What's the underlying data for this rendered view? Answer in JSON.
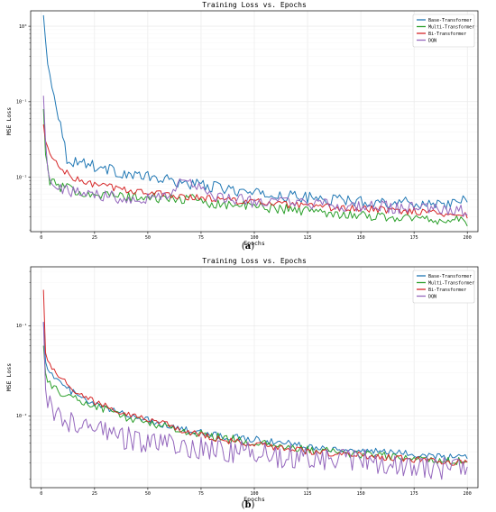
{
  "chart_data": [
    {
      "type": "line",
      "panel": "a",
      "caption": "a",
      "title": "Training Loss vs. Epochs",
      "xlabel": "Epochs",
      "ylabel": "MSE Loss",
      "xlim": [
        -5,
        205
      ],
      "ylim": [
        0.0019,
        1.6
      ],
      "yscale": "log",
      "grid": true,
      "legend_position": "top-right",
      "xticks": [
        0,
        25,
        50,
        75,
        100,
        125,
        150,
        175,
        200
      ],
      "xtick_labels": [
        "0",
        "25",
        "50",
        "75",
        "100",
        "125",
        "150",
        "175",
        "200"
      ],
      "yticks": [
        0.01,
        0.1,
        1
      ],
      "ytick_labels": [
        "10⁻²",
        "10⁻¹",
        "10⁰"
      ],
      "series": [
        {
          "name": "Base-Transformer",
          "color": "#1f77b4",
          "points": [
            [
              1,
              1.4
            ],
            [
              3,
              0.3
            ],
            [
              6,
              0.13
            ],
            [
              9,
              0.05
            ],
            [
              12,
              0.018
            ],
            [
              15,
              0.016
            ],
            [
              20,
              0.016
            ],
            [
              25,
              0.014
            ],
            [
              30,
              0.013
            ],
            [
              40,
              0.011
            ],
            [
              50,
              0.01
            ],
            [
              60,
              0.009
            ],
            [
              70,
              0.0082
            ],
            [
              80,
              0.0075
            ],
            [
              90,
              0.0068
            ],
            [
              100,
              0.006
            ],
            [
              110,
              0.0058
            ],
            [
              120,
              0.0055
            ],
            [
              130,
              0.0052
            ],
            [
              140,
              0.005
            ],
            [
              150,
              0.0048
            ],
            [
              160,
              0.0047
            ],
            [
              170,
              0.0046
            ],
            [
              180,
              0.0045
            ],
            [
              190,
              0.0045
            ],
            [
              198,
              0.0048
            ],
            [
              200,
              0.004
            ]
          ],
          "noise": 0.08
        },
        {
          "name": "Multi-Transformer",
          "color": "#2ca02c",
          "points": [
            [
              1,
              0.08
            ],
            [
              2,
              0.02
            ],
            [
              4,
              0.009
            ],
            [
              8,
              0.0075
            ],
            [
              15,
              0.0068
            ],
            [
              25,
              0.006
            ],
            [
              40,
              0.0055
            ],
            [
              60,
              0.0052
            ],
            [
              75,
              0.005
            ],
            [
              80,
              0.0045
            ],
            [
              100,
              0.0041
            ],
            [
              120,
              0.0037
            ],
            [
              140,
              0.0033
            ],
            [
              160,
              0.003
            ],
            [
              180,
              0.0028
            ],
            [
              200,
              0.0026
            ]
          ],
          "noise": 0.07
        },
        {
          "name": "Bi-Transformer",
          "color": "#d62728",
          "points": [
            [
              1,
              0.05
            ],
            [
              2,
              0.03
            ],
            [
              4,
              0.02
            ],
            [
              8,
              0.014
            ],
            [
              15,
              0.0095
            ],
            [
              25,
              0.008
            ],
            [
              40,
              0.0068
            ],
            [
              60,
              0.0058
            ],
            [
              80,
              0.0052
            ],
            [
              100,
              0.0047
            ],
            [
              120,
              0.0042
            ],
            [
              140,
              0.0039
            ],
            [
              160,
              0.0037
            ],
            [
              180,
              0.0035
            ],
            [
              200,
              0.0031
            ]
          ],
          "noise": 0.05
        },
        {
          "name": "DQN",
          "color": "#9467bd",
          "points": [
            [
              1,
              0.12
            ],
            [
              2,
              0.03
            ],
            [
              3,
              0.012
            ],
            [
              6,
              0.0085
            ],
            [
              12,
              0.0065
            ],
            [
              20,
              0.0062
            ],
            [
              35,
              0.0055
            ],
            [
              50,
              0.0053
            ],
            [
              60,
              0.0058
            ],
            [
              67,
              0.0105
            ],
            [
              72,
              0.0075
            ],
            [
              80,
              0.0055
            ],
            [
              100,
              0.0048
            ],
            [
              120,
              0.0045
            ],
            [
              140,
              0.0042
            ],
            [
              160,
              0.004
            ],
            [
              180,
              0.0038
            ],
            [
              200,
              0.0035
            ]
          ],
          "noise": 0.09
        }
      ]
    },
    {
      "type": "line",
      "panel": "b",
      "caption": "b",
      "title": "Training Loss vs. Epochs",
      "xlabel": "Epochs",
      "ylabel": "MSE Loss",
      "xlim": [
        -5,
        205
      ],
      "ylim": [
        0.0016,
        0.45
      ],
      "yscale": "log",
      "grid": true,
      "legend_position": "top-right",
      "xticks": [
        0,
        25,
        50,
        75,
        100,
        125,
        150,
        175,
        200
      ],
      "xtick_labels": [
        "0",
        "25",
        "50",
        "75",
        "100",
        "125",
        "150",
        "175",
        "200"
      ],
      "yticks": [
        0.01,
        0.1
      ],
      "ytick_labels": [
        "10⁻²",
        "10⁻¹"
      ],
      "series": [
        {
          "name": "Base-Transformer",
          "color": "#1f77b4",
          "points": [
            [
              1,
              0.11
            ],
            [
              2,
              0.04
            ],
            [
              5,
              0.028
            ],
            [
              10,
              0.022
            ],
            [
              20,
              0.015
            ],
            [
              30,
              0.012
            ],
            [
              40,
              0.0105
            ],
            [
              50,
              0.009
            ],
            [
              60,
              0.0078
            ],
            [
              70,
              0.0068
            ],
            [
              80,
              0.0062
            ],
            [
              90,
              0.0058
            ],
            [
              100,
              0.0055
            ],
            [
              120,
              0.0048
            ],
            [
              140,
              0.0042
            ],
            [
              160,
              0.004
            ],
            [
              180,
              0.0037
            ],
            [
              200,
              0.0034
            ]
          ],
          "noise": 0.04
        },
        {
          "name": "Multi-Transformer",
          "color": "#2ca02c",
          "points": [
            [
              1,
              0.06
            ],
            [
              2,
              0.03
            ],
            [
              5,
              0.02
            ],
            [
              10,
              0.018
            ],
            [
              20,
              0.014
            ],
            [
              30,
              0.012
            ],
            [
              40,
              0.0095
            ],
            [
              50,
              0.0085
            ],
            [
              60,
              0.0075
            ],
            [
              70,
              0.0065
            ],
            [
              80,
              0.006
            ],
            [
              90,
              0.0055
            ],
            [
              100,
              0.005
            ],
            [
              120,
              0.0043
            ],
            [
              140,
              0.0039
            ],
            [
              160,
              0.0036
            ],
            [
              180,
              0.0033
            ],
            [
              200,
              0.0031
            ]
          ],
          "noise": 0.05
        },
        {
          "name": "Bi-Transformer",
          "color": "#d62728",
          "points": [
            [
              1,
              0.25
            ],
            [
              2,
              0.05
            ],
            [
              5,
              0.035
            ],
            [
              10,
              0.025
            ],
            [
              20,
              0.016
            ],
            [
              30,
              0.013
            ],
            [
              40,
              0.0108
            ],
            [
              50,
              0.0092
            ],
            [
              60,
              0.0078
            ],
            [
              70,
              0.0065
            ],
            [
              80,
              0.0057
            ],
            [
              90,
              0.0052
            ],
            [
              100,
              0.0048
            ],
            [
              120,
              0.0042
            ],
            [
              140,
              0.0038
            ],
            [
              160,
              0.0035
            ],
            [
              180,
              0.0032
            ],
            [
              200,
              0.003
            ]
          ],
          "noise": 0.04
        },
        {
          "name": "DQN",
          "color": "#9467bd",
          "points": [
            [
              1,
              0.11
            ],
            [
              2,
              0.02
            ],
            [
              5,
              0.011
            ],
            [
              10,
              0.009
            ],
            [
              20,
              0.0075
            ],
            [
              30,
              0.0065
            ],
            [
              40,
              0.0057
            ],
            [
              50,
              0.0052
            ],
            [
              60,
              0.0048
            ],
            [
              80,
              0.0043
            ],
            [
              100,
              0.0038
            ],
            [
              120,
              0.0035
            ],
            [
              140,
              0.0033
            ],
            [
              160,
              0.003
            ],
            [
              180,
              0.0028
            ],
            [
              200,
              0.0024
            ]
          ],
          "noise": 0.14
        }
      ]
    }
  ]
}
